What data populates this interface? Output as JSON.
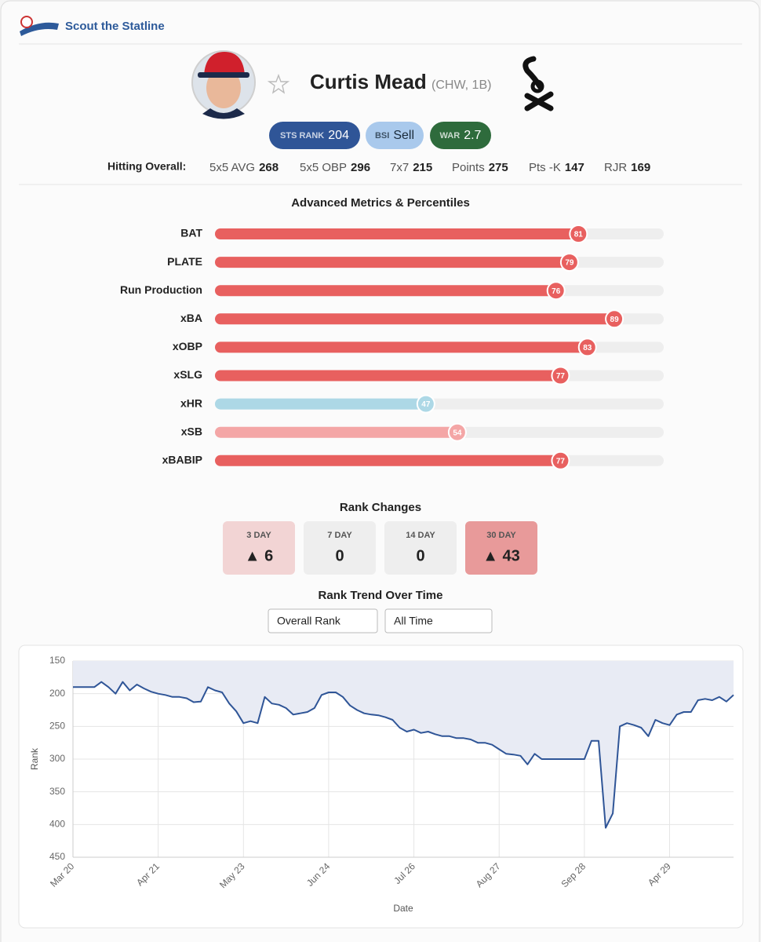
{
  "header": {
    "title": "Scout the Statline"
  },
  "player": {
    "name": "Curtis Mead",
    "meta": "(CHW, 1B)"
  },
  "badges": [
    {
      "label": "STS RANK",
      "value": 204,
      "color": "#2f5597",
      "text_color": "#ffffff"
    },
    {
      "label": "BSI",
      "value": "Sell",
      "color": "#a9c9ec",
      "text_color": "#1a2a3a"
    },
    {
      "label": "WAR",
      "value": 2.7,
      "color": "#2e6b3c",
      "text_color": "#ffffff"
    }
  ],
  "hitting": {
    "label": "Hitting Overall:",
    "items": [
      {
        "label": "5x5 AVG",
        "value": 268
      },
      {
        "label": "5x5 OBP",
        "value": 296
      },
      {
        "label": "7x7",
        "value": 215
      },
      {
        "label": "Points",
        "value": 275
      },
      {
        "label": "Pts -K",
        "value": 147
      },
      {
        "label": "RJR",
        "value": 169
      }
    ]
  },
  "metrics": {
    "title": "Advanced Metrics & Percentiles",
    "xlim": [
      0,
      100
    ],
    "items": [
      {
        "label": "BAT",
        "value": 81,
        "color": "#e8605f"
      },
      {
        "label": "PLATE",
        "value": 79,
        "color": "#e8605f"
      },
      {
        "label": "Run Production",
        "value": 76,
        "color": "#e8605f"
      },
      {
        "label": "xBA",
        "value": 89,
        "color": "#e8605f"
      },
      {
        "label": "xOBP",
        "value": 83,
        "color": "#e8605f"
      },
      {
        "label": "xSLG",
        "value": 77,
        "color": "#e8605f"
      },
      {
        "label": "xHR",
        "value": 47,
        "color": "#add8e6"
      },
      {
        "label": "xSB",
        "value": 54,
        "color": "#f4a6a6"
      },
      {
        "label": "xBABIP",
        "value": 77,
        "color": "#e8605f"
      }
    ]
  },
  "rank_changes": {
    "title": "Rank Changes",
    "items": [
      {
        "label": "3 DAY",
        "value": 6,
        "value_label": "▲ 6",
        "color": "#f2d4d4"
      },
      {
        "label": "7 DAY",
        "value": 0,
        "color": "#eeeeee"
      },
      {
        "label": "14 DAY",
        "value": 0,
        "color": "#eeeeee"
      },
      {
        "label": "30 DAY",
        "value": 43,
        "value_label": "▲ 43",
        "color": "#e89a9a"
      }
    ]
  },
  "trend": {
    "title": "Rank Trend Over Time",
    "controls": [
      "Overall Rank",
      "All Time"
    ]
  },
  "chart_data": {
    "type": "line",
    "x_label": "Date",
    "y_label": "Rank",
    "ylim": [
      150,
      450
    ],
    "y_reversed": true,
    "yticks": [
      150,
      200,
      250,
      300,
      350,
      400,
      450
    ],
    "grid": true,
    "categories": [
      "Mar 20",
      null,
      null,
      null,
      null,
      null,
      null,
      null,
      null,
      null,
      null,
      null,
      "Apr 21",
      null,
      null,
      null,
      null,
      null,
      null,
      null,
      null,
      null,
      null,
      null,
      "May 23",
      null,
      null,
      null,
      null,
      null,
      null,
      null,
      null,
      null,
      null,
      null,
      "Jun 24",
      null,
      null,
      null,
      null,
      null,
      null,
      null,
      null,
      null,
      null,
      null,
      "Jul 26",
      null,
      null,
      null,
      null,
      null,
      null,
      null,
      null,
      null,
      null,
      null,
      "Aug 27",
      null,
      null,
      null,
      null,
      null,
      null,
      null,
      null,
      null,
      null,
      null,
      "Sep 28",
      null,
      null,
      null,
      null,
      null,
      null,
      null,
      null,
      null,
      null,
      null,
      "Apr 29",
      null,
      null,
      null,
      null,
      null,
      null,
      null,
      null,
      null
    ],
    "series": [
      {
        "name": "Rank",
        "color": "#2f5597",
        "fill": "#e8ebf4",
        "values": [
          190,
          190,
          190,
          190,
          182,
          190,
          200,
          182,
          195,
          186,
          192,
          197,
          200,
          202,
          205,
          205,
          207,
          213,
          212,
          190,
          195,
          198,
          215,
          227,
          245,
          242,
          245,
          205,
          215,
          217,
          222,
          232,
          230,
          228,
          222,
          202,
          198,
          198,
          205,
          218,
          225,
          230,
          232,
          233,
          236,
          240,
          252,
          258,
          255,
          260,
          258,
          262,
          265,
          265,
          268,
          268,
          270,
          275,
          275,
          278,
          285,
          292,
          293,
          295,
          308,
          292,
          300,
          300,
          300,
          300,
          300,
          300,
          300,
          272,
          272,
          405,
          383,
          250,
          245,
          248,
          252,
          265,
          240,
          245,
          248,
          232,
          228,
          228,
          210,
          208,
          210,
          205,
          212,
          202
        ]
      }
    ]
  }
}
